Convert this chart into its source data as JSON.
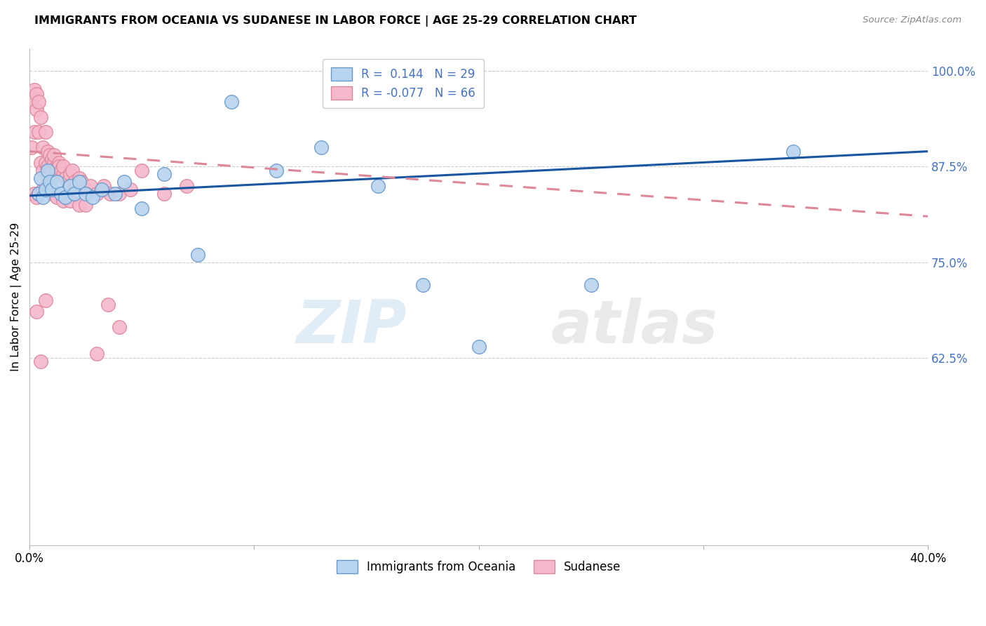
{
  "title": "IMMIGRANTS FROM OCEANIA VS SUDANESE IN LABOR FORCE | AGE 25-29 CORRELATION CHART",
  "source": "Source: ZipAtlas.com",
  "ylabel": "In Labor Force | Age 25-29",
  "xlim": [
    0.0,
    0.4
  ],
  "ylim": [
    0.38,
    1.03
  ],
  "ytick_labels": [
    "100.0%",
    "87.5%",
    "75.0%",
    "62.5%"
  ],
  "ytick_values": [
    1.0,
    0.875,
    0.75,
    0.625
  ],
  "oceania_color": "#b8d4ee",
  "oceania_edge": "#6699cc",
  "sudanese_color": "#f5b8cc",
  "sudanese_edge": "#dd8899",
  "trend_blue": "#1a56a0",
  "trend_pink": "#dd8899",
  "watermark": "ZIPatlas",
  "oceania_x": [
    0.004,
    0.005,
    0.006,
    0.007,
    0.008,
    0.009,
    0.01,
    0.012,
    0.014,
    0.016,
    0.018,
    0.02,
    0.022,
    0.025,
    0.028,
    0.032,
    0.038,
    0.042,
    0.05,
    0.06,
    0.075,
    0.09,
    0.11,
    0.13,
    0.155,
    0.175,
    0.2,
    0.25,
    0.34
  ],
  "oceania_y": [
    0.84,
    0.86,
    0.835,
    0.845,
    0.87,
    0.855,
    0.845,
    0.855,
    0.84,
    0.835,
    0.85,
    0.84,
    0.855,
    0.84,
    0.835,
    0.845,
    0.84,
    0.855,
    0.82,
    0.865,
    0.76,
    0.96,
    0.87,
    0.9,
    0.85,
    0.72,
    0.64,
    0.72,
    0.895
  ],
  "sudanese_x": [
    0.001,
    0.001,
    0.002,
    0.002,
    0.003,
    0.003,
    0.004,
    0.004,
    0.005,
    0.005,
    0.006,
    0.006,
    0.007,
    0.007,
    0.008,
    0.008,
    0.009,
    0.009,
    0.01,
    0.01,
    0.011,
    0.011,
    0.012,
    0.012,
    0.013,
    0.013,
    0.014,
    0.015,
    0.015,
    0.016,
    0.017,
    0.018,
    0.019,
    0.02,
    0.021,
    0.022,
    0.023,
    0.025,
    0.027,
    0.03,
    0.033,
    0.036,
    0.04,
    0.045,
    0.05,
    0.06,
    0.07,
    0.002,
    0.003,
    0.004,
    0.006,
    0.008,
    0.01,
    0.012,
    0.015,
    0.018,
    0.022,
    0.025,
    0.03,
    0.035,
    0.04,
    0.003,
    0.005,
    0.007
  ],
  "sudanese_y": [
    0.9,
    0.96,
    0.92,
    0.975,
    0.95,
    0.97,
    0.96,
    0.92,
    0.94,
    0.88,
    0.9,
    0.87,
    0.88,
    0.92,
    0.875,
    0.895,
    0.89,
    0.87,
    0.885,
    0.87,
    0.88,
    0.89,
    0.875,
    0.87,
    0.88,
    0.875,
    0.87,
    0.865,
    0.875,
    0.86,
    0.855,
    0.865,
    0.87,
    0.855,
    0.85,
    0.86,
    0.855,
    0.845,
    0.85,
    0.84,
    0.85,
    0.84,
    0.84,
    0.845,
    0.87,
    0.84,
    0.85,
    0.84,
    0.835,
    0.84,
    0.845,
    0.855,
    0.84,
    0.835,
    0.83,
    0.83,
    0.825,
    0.825,
    0.63,
    0.695,
    0.665,
    0.685,
    0.62,
    0.7
  ]
}
